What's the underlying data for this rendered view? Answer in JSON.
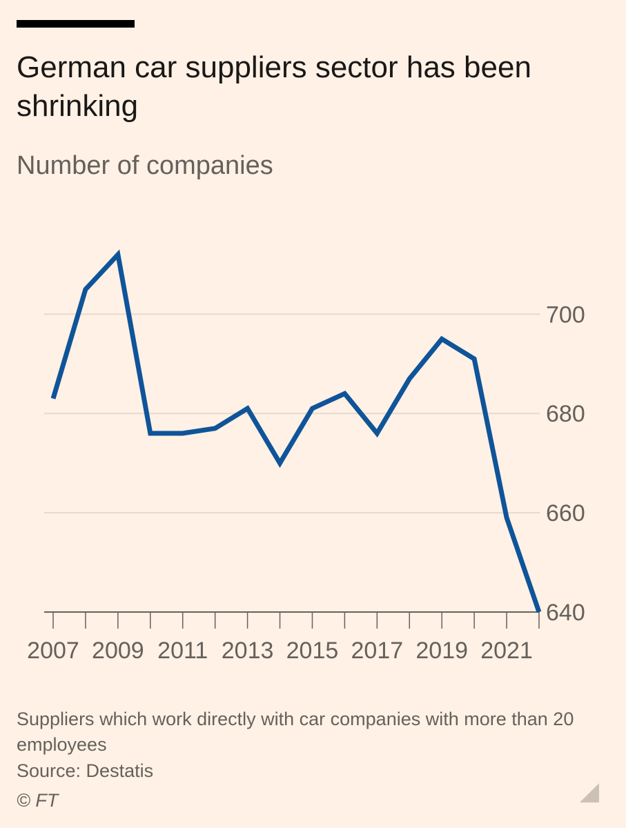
{
  "header": {
    "title": "German car suppliers sector has been shrinking",
    "subtitle": "Number of companies"
  },
  "footer": {
    "note": "Suppliers which work directly with car companies with more than 20 employees",
    "source": "Source: Destatis",
    "copyright": "© FT"
  },
  "colors": {
    "line": "#0f5499",
    "grid": "#e6d9ce",
    "axis": "#66605c",
    "background": "#fff1e5"
  },
  "chart_data": {
    "type": "line",
    "x": [
      2007,
      2008,
      2009,
      2010,
      2011,
      2012,
      2013,
      2014,
      2015,
      2016,
      2017,
      2018,
      2019,
      2020,
      2021,
      2022
    ],
    "series": [
      {
        "values": [
          683,
          705,
          712,
          676,
          676,
          677,
          681,
          670,
          681,
          684,
          676,
          687,
          695,
          691,
          659,
          640
        ]
      }
    ],
    "x_tick_labels": [
      "2007",
      "2009",
      "2011",
      "2013",
      "2015",
      "2017",
      "2019",
      "2021"
    ],
    "y_ticks": [
      640,
      660,
      680,
      700
    ],
    "y_tick_labels": [
      "640",
      "660",
      "680",
      "700"
    ],
    "ylim": [
      640,
      712
    ],
    "xlim": [
      2007,
      2022
    ],
    "y_axis_position": "right",
    "grid": true
  }
}
